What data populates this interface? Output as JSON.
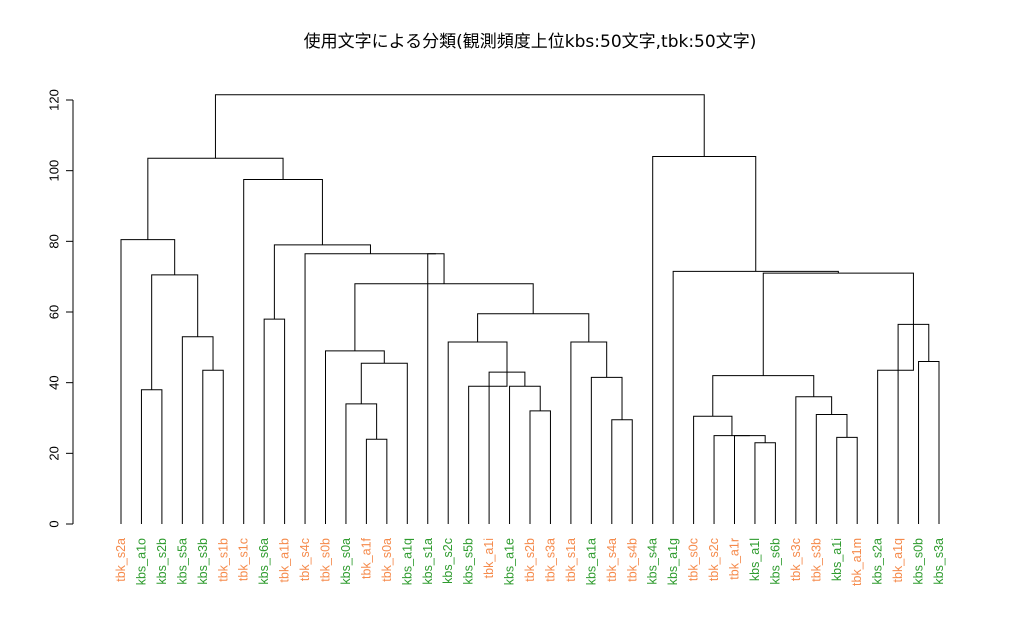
{
  "chart_data": {
    "type": "dendrogram",
    "title": "使用文字による分類(観測頻度上位kbs:50文字,tbk:50文字)",
    "xlabel": "",
    "ylabel": "",
    "ylim": [
      0,
      120
    ],
    "yticks": [
      0,
      20,
      40,
      60,
      80,
      100,
      120
    ],
    "ytick_labels": [
      "0",
      "20",
      "40",
      "60",
      "80",
      "100",
      "120"
    ],
    "grid": false,
    "group_colors": {
      "tbk": "#F58A4B",
      "kbs": "#2E9B2E"
    },
    "leaves": [
      {
        "label": "tbk_s2a",
        "group": "tbk"
      },
      {
        "label": "kbs_a1o",
        "group": "kbs"
      },
      {
        "label": "kbs_s2b",
        "group": "kbs"
      },
      {
        "label": "kbs_s5a",
        "group": "kbs"
      },
      {
        "label": "kbs_s3b",
        "group": "kbs"
      },
      {
        "label": "tbk_s1b",
        "group": "tbk"
      },
      {
        "label": "tbk_s1c",
        "group": "tbk"
      },
      {
        "label": "kbs_s6a",
        "group": "kbs"
      },
      {
        "label": "tbk_a1b",
        "group": "tbk"
      },
      {
        "label": "tbk_s4c",
        "group": "tbk"
      },
      {
        "label": "tbk_s0b",
        "group": "tbk"
      },
      {
        "label": "kbs_s0a",
        "group": "kbs"
      },
      {
        "label": "tbk_a1f",
        "group": "tbk"
      },
      {
        "label": "tbk_s0a",
        "group": "tbk"
      },
      {
        "label": "kbs_a1q",
        "group": "kbs"
      },
      {
        "label": "kbs_s1a",
        "group": "kbs"
      },
      {
        "label": "kbs_s2c",
        "group": "kbs"
      },
      {
        "label": "kbs_s5b",
        "group": "kbs"
      },
      {
        "label": "tbk_a1i",
        "group": "tbk"
      },
      {
        "label": "kbs_a1e",
        "group": "kbs"
      },
      {
        "label": "tbk_s2b",
        "group": "tbk"
      },
      {
        "label": "tbk_s3a",
        "group": "tbk"
      },
      {
        "label": "tbk_s1a",
        "group": "tbk"
      },
      {
        "label": "kbs_a1a",
        "group": "kbs"
      },
      {
        "label": "tbk_s4a",
        "group": "tbk"
      },
      {
        "label": "tbk_s4b",
        "group": "tbk"
      },
      {
        "label": "kbs_s4a",
        "group": "kbs"
      },
      {
        "label": "kbs_a1g",
        "group": "kbs"
      },
      {
        "label": "tbk_s0c",
        "group": "tbk"
      },
      {
        "label": "tbk_s2c",
        "group": "tbk"
      },
      {
        "label": "tbk_a1r",
        "group": "tbk"
      },
      {
        "label": "kbs_a1l",
        "group": "kbs"
      },
      {
        "label": "kbs_s6b",
        "group": "kbs"
      },
      {
        "label": "tbk_s3c",
        "group": "tbk"
      },
      {
        "label": "tbk_s3b",
        "group": "tbk"
      },
      {
        "label": "kbs_a1i",
        "group": "kbs"
      },
      {
        "label": "tbk_a1m",
        "group": "tbk"
      },
      {
        "label": "kbs_s2a",
        "group": "kbs"
      },
      {
        "label": "tbk_a1q",
        "group": "tbk"
      },
      {
        "label": "kbs_s0b",
        "group": "kbs"
      },
      {
        "label": "kbs_s3a",
        "group": "kbs"
      }
    ],
    "merges": [
      {
        "id": "A",
        "left": 1,
        "right": 2,
        "height": 38
      },
      {
        "id": "B",
        "left": 4,
        "right": 5,
        "height": 43.5
      },
      {
        "id": "C",
        "left": 3,
        "right": "B",
        "height": 53
      },
      {
        "id": "D",
        "left": "A",
        "right": "C",
        "height": 70.5
      },
      {
        "id": "E",
        "left": 0,
        "right": "D",
        "height": 80.5
      },
      {
        "id": "F",
        "left": 7,
        "right": 8,
        "height": 58
      },
      {
        "id": "G",
        "left": 12,
        "right": 13,
        "height": 24
      },
      {
        "id": "H",
        "left": 11,
        "right": "G",
        "height": 34
      },
      {
        "id": "I",
        "left": "H",
        "right": 14,
        "height": 45.5
      },
      {
        "id": "J",
        "left": 10,
        "right": "I",
        "height": 49
      },
      {
        "id": "K",
        "left": 20,
        "right": 21,
        "height": 32
      },
      {
        "id": "L",
        "left": 19,
        "right": "K",
        "height": 39
      },
      {
        "id": "M",
        "left": 18,
        "right": "L",
        "height": 43
      },
      {
        "id": "N",
        "left": 17,
        "right": "M",
        "height": 39
      },
      {
        "id": "O",
        "left": 16,
        "right": "M",
        "height": 51.5
      },
      {
        "id": "P",
        "left": 24,
        "right": 25,
        "height": 29.5
      },
      {
        "id": "Q",
        "left": 23,
        "right": "P",
        "height": 41.5
      },
      {
        "id": "R",
        "left": 22,
        "right": "Q",
        "height": 51.5
      },
      {
        "id": "S",
        "left": "O",
        "right": "R",
        "height": 59.5
      },
      {
        "id": "T",
        "left": "J",
        "right": "S",
        "height": 68
      },
      {
        "id": "U",
        "left": 15,
        "right": "T",
        "height": 76.5
      },
      {
        "id": "V",
        "left": 9,
        "right": "U",
        "height": 76.5
      },
      {
        "id": "W",
        "left": "F",
        "right": "V",
        "height": 79
      },
      {
        "id": "X",
        "left": 6,
        "right": "W",
        "height": 97.5
      },
      {
        "id": "Y",
        "left": "E",
        "right": "X",
        "height": 103.5
      },
      {
        "id": "Z1",
        "left": 31,
        "right": 32,
        "height": 23
      },
      {
        "id": "Z2",
        "left": 30,
        "right": "Z1",
        "height": 25
      },
      {
        "id": "Z3",
        "left": 29,
        "right": "Z2",
        "height": 25
      },
      {
        "id": "Z4",
        "left": 28,
        "right": "Z3",
        "height": 30.5
      },
      {
        "id": "Z5",
        "left": 35,
        "right": 36,
        "height": 24.5
      },
      {
        "id": "Z6",
        "left": 34,
        "right": "Z5",
        "height": 31
      },
      {
        "id": "Z7",
        "left": 33,
        "right": "Z6",
        "height": 36
      },
      {
        "id": "Z8",
        "left": "Z4",
        "right": "Z7",
        "height": 42
      },
      {
        "id": "Z9",
        "left": 39,
        "right": 40,
        "height": 46
      },
      {
        "id": "Z10",
        "left": 38,
        "right": "Z9",
        "height": 56.5
      },
      {
        "id": "Z11",
        "left": 37,
        "right": "Z10",
        "height": 43.5
      },
      {
        "id": "Z12",
        "left": "Z8",
        "right": "Z10",
        "height": 71
      },
      {
        "id": "Z13",
        "left": 27,
        "right": "Z12",
        "height": 71.5
      },
      {
        "id": "Z14",
        "left": 26,
        "right": "Z13",
        "height": 104
      },
      {
        "id": "ROOT",
        "left": "Y",
        "right": "Z14",
        "height": 121.5
      }
    ]
  }
}
